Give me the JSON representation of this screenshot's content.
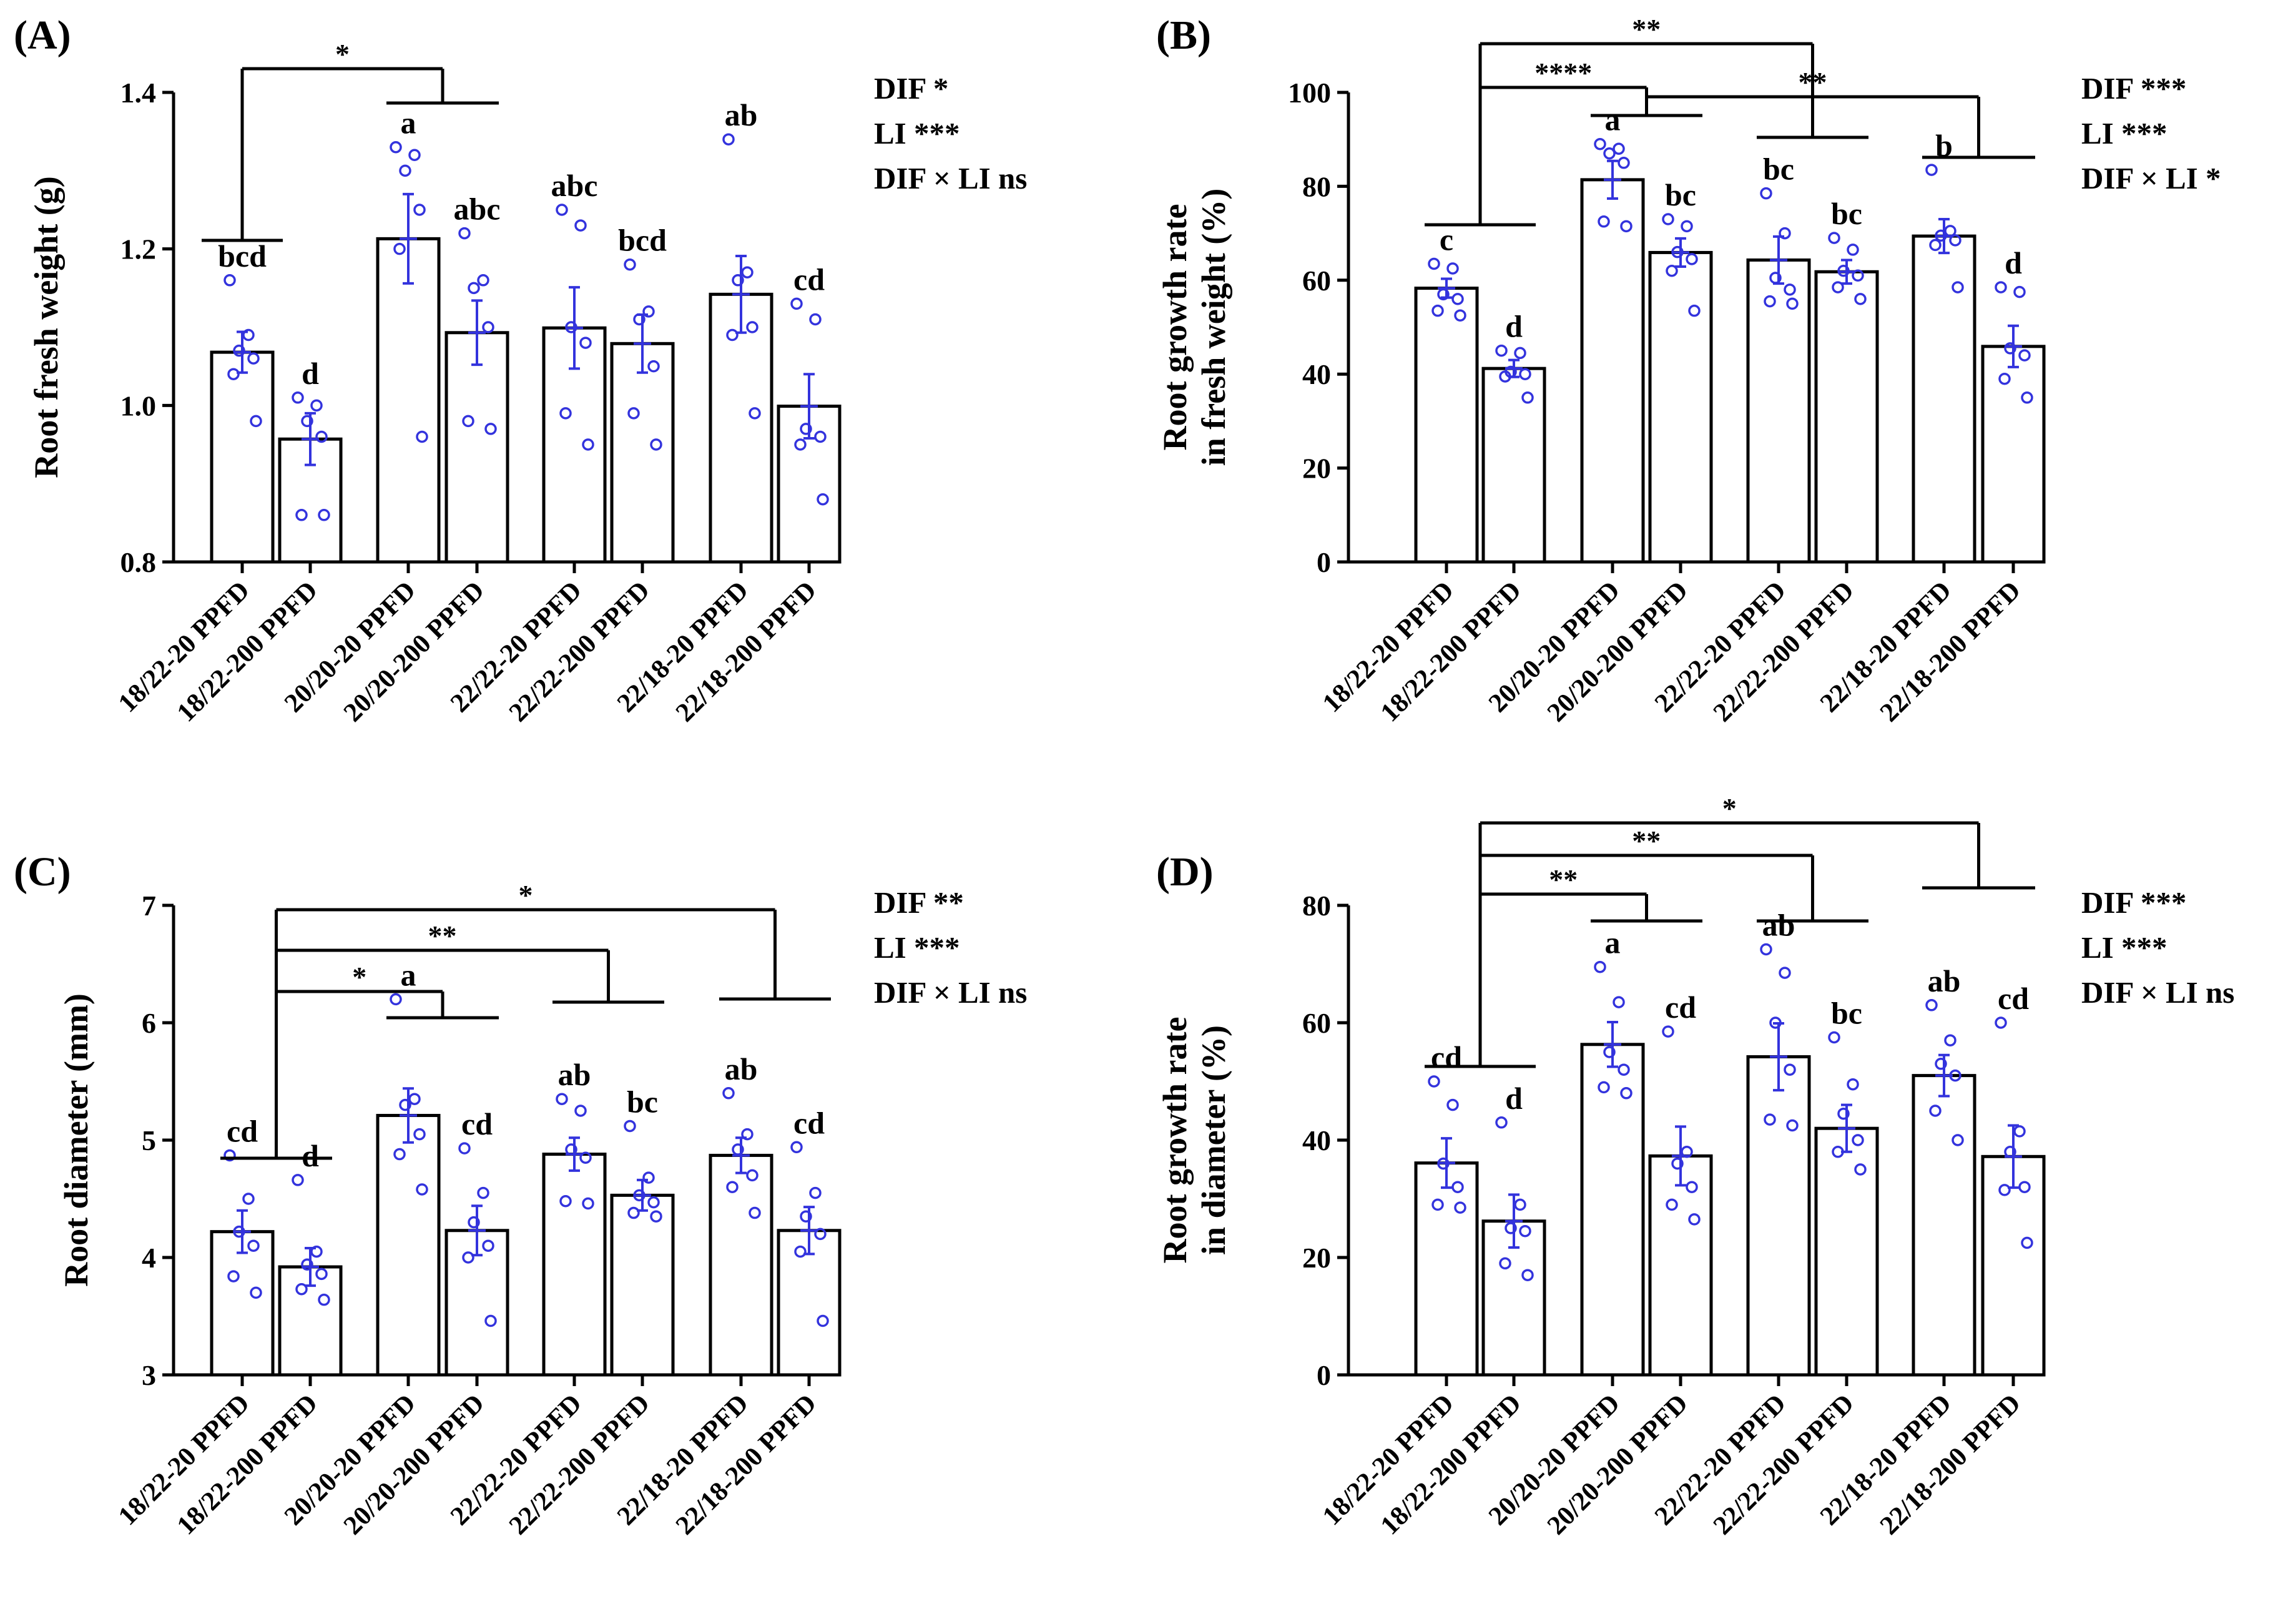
{
  "colors": {
    "points": "#3333dd",
    "bars": "#000000",
    "background": "#ffffff"
  },
  "chart_data": [
    {
      "type": "bar",
      "panel": "(A)",
      "title": "",
      "xlabel": "",
      "ylabel": [
        "Root fresh weight (g)"
      ],
      "ylim": [
        0.8,
        1.4
      ],
      "yticks": [
        "0.8",
        "1.0",
        "1.2",
        "1.4"
      ],
      "categories": [
        "18/22-20 PPFD",
        "18/22-200 PPFD",
        "20/20-20 PPFD",
        "20/20-200 PPFD",
        "22/22-20 PPFD",
        "22/22-200 PPFD",
        "22/18-20 PPFD",
        "22/18-200 PPFD"
      ],
      "values": [
        1.068,
        0.957,
        1.213,
        1.093,
        1.099,
        1.079,
        1.142,
        0.999
      ],
      "errors": [
        0.026,
        0.033,
        0.057,
        0.041,
        0.052,
        0.037,
        0.049,
        0.041
      ],
      "points": [
        [
          1.16,
          1.09,
          1.07,
          1.06,
          1.04,
          0.98
        ],
        [
          1.01,
          1.0,
          0.98,
          0.96,
          0.86,
          0.86
        ],
        [
          1.33,
          1.32,
          1.3,
          1.25,
          1.2,
          0.96
        ],
        [
          1.22,
          1.16,
          1.15,
          1.1,
          0.98,
          0.97
        ],
        [
          1.25,
          1.23,
          1.1,
          1.08,
          0.99,
          0.95
        ],
        [
          1.18,
          1.12,
          1.11,
          1.05,
          0.99,
          0.95
        ],
        [
          1.34,
          1.17,
          1.16,
          1.1,
          1.09,
          0.99
        ],
        [
          1.13,
          1.11,
          0.97,
          0.96,
          0.95,
          0.88
        ]
      ],
      "letters": [
        "bcd",
        "d",
        "a",
        "abc",
        "abc",
        "bcd",
        "ab",
        "cd"
      ],
      "stats": [
        "DIF *",
        "LI    ***",
        "DIF × LI ns"
      ],
      "brackets": [
        {
          "from": "18/22",
          "to": "20/20",
          "label": "*"
        }
      ]
    },
    {
      "type": "bar",
      "panel": "(B)",
      "title": "",
      "xlabel": "",
      "ylabel": [
        "Root growth rate",
        "in fresh weight (%)"
      ],
      "ylim": [
        0,
        100
      ],
      "yticks": [
        "0",
        "20",
        "40",
        "60",
        "80",
        "100"
      ],
      "categories": [
        "18/22-20 PPFD",
        "18/22-200 PPFD",
        "20/20-20 PPFD",
        "20/20-200 PPFD",
        "22/22-20 PPFD",
        "22/22-200 PPFD",
        "22/18-20 PPFD",
        "22/18-200 PPFD"
      ],
      "values": [
        58.3,
        41.2,
        81.4,
        65.9,
        64.3,
        61.8,
        69.4,
        45.9
      ],
      "errors": [
        2.0,
        1.8,
        4.0,
        3.0,
        5.0,
        2.5,
        3.6,
        4.4
      ],
      "points": [
        [
          63.5,
          62.5,
          57.0,
          56.0,
          53.5,
          52.5
        ],
        [
          45.0,
          44.5,
          40.5,
          40.0,
          39.5,
          35.0
        ],
        [
          89.0,
          88.0,
          87.0,
          85.0,
          72.5,
          71.5
        ],
        [
          73.0,
          71.5,
          66.0,
          64.5,
          62.0,
          53.5
        ],
        [
          78.5,
          70.0,
          60.5,
          58.0,
          55.5,
          55.0
        ],
        [
          69.0,
          66.5,
          62.0,
          61.0,
          58.5,
          56.0
        ],
        [
          83.5,
          70.5,
          69.5,
          68.5,
          67.5,
          58.5
        ],
        [
          58.5,
          57.5,
          45.5,
          44.0,
          39.0,
          35.0
        ]
      ],
      "letters": [
        "c",
        "d",
        "a",
        "bc",
        "bc",
        "bc",
        "b",
        "d"
      ],
      "stats": [
        "DIF ***",
        "LI    ***",
        "DIF × LI *"
      ],
      "brackets": [
        {
          "from": "18/22",
          "to": "20/20",
          "label": "****"
        },
        {
          "from": "18/22",
          "to": "22/22",
          "label": "**"
        },
        {
          "from": "20/20",
          "to": "22/18",
          "label": "**"
        }
      ]
    },
    {
      "type": "bar",
      "panel": "(C)",
      "title": "",
      "xlabel": "",
      "ylabel": [
        "Root diameter (mm)"
      ],
      "ylim": [
        3,
        7
      ],
      "yticks": [
        "3",
        "4",
        "5",
        "6",
        "7"
      ],
      "categories": [
        "18/22-20 PPFD",
        "18/22-200 PPFD",
        "20/20-20 PPFD",
        "20/20-200 PPFD",
        "22/22-20 PPFD",
        "22/22-200 PPFD",
        "22/18-20 PPFD",
        "22/18-200 PPFD"
      ],
      "values": [
        4.22,
        3.92,
        5.21,
        4.23,
        4.88,
        4.53,
        4.87,
        4.23
      ],
      "errors": [
        0.18,
        0.16,
        0.23,
        0.21,
        0.14,
        0.13,
        0.15,
        0.2
      ],
      "points": [
        [
          4.87,
          4.5,
          4.22,
          4.1,
          3.84,
          3.7
        ],
        [
          4.66,
          4.05,
          3.94,
          3.86,
          3.73,
          3.64
        ],
        [
          6.2,
          5.35,
          5.3,
          5.05,
          4.88,
          4.58
        ],
        [
          4.93,
          4.55,
          4.3,
          4.1,
          4.0,
          3.46
        ],
        [
          5.35,
          5.25,
          4.92,
          4.85,
          4.48,
          4.46
        ],
        [
          5.12,
          4.68,
          4.53,
          4.47,
          4.38,
          4.35
        ],
        [
          5.4,
          5.05,
          4.92,
          4.7,
          4.6,
          4.38
        ],
        [
          4.94,
          4.55,
          4.35,
          4.2,
          4.05,
          3.46
        ]
      ],
      "letters": [
        "cd",
        "d",
        "a",
        "cd",
        "ab",
        "bc",
        "ab",
        "cd"
      ],
      "stats": [
        "DIF **",
        "LI    ***",
        "DIF × LI ns"
      ],
      "brackets": [
        {
          "from": "18/22",
          "to": "20/20",
          "label": "*"
        },
        {
          "from": "18/22",
          "to": "22/22",
          "label": "**"
        },
        {
          "from": "18/22",
          "to": "22/18",
          "label": "*"
        }
      ]
    },
    {
      "type": "bar",
      "panel": "(D)",
      "title": "",
      "xlabel": "",
      "ylabel": [
        "Root growth rate",
        "in diameter (%)"
      ],
      "ylim": [
        0,
        80
      ],
      "yticks": [
        "0",
        "20",
        "40",
        "60",
        "80"
      ],
      "categories": [
        "18/22-20 PPFD",
        "18/22-200 PPFD",
        "20/20-20 PPFD",
        "20/20-200 PPFD",
        "22/22-20 PPFD",
        "22/22-200 PPFD",
        "22/18-20 PPFD",
        "22/18-200 PPFD"
      ],
      "values": [
        36.1,
        26.2,
        56.3,
        37.3,
        54.2,
        42.0,
        51.0,
        37.2
      ],
      "errors": [
        4.2,
        4.5,
        3.8,
        5.0,
        5.7,
        4.0,
        3.5,
        5.3
      ],
      "points": [
        [
          50.0,
          46.0,
          36.0,
          32.0,
          29.0,
          28.5
        ],
        [
          43.0,
          29.0,
          25.0,
          24.5,
          19.0,
          17.0
        ],
        [
          69.5,
          63.5,
          55.0,
          52.0,
          49.0,
          48.0
        ],
        [
          58.5,
          38.0,
          36.0,
          32.0,
          29.0,
          26.5
        ],
        [
          72.5,
          68.5,
          60.0,
          52.0,
          43.5,
          42.5
        ],
        [
          57.5,
          49.5,
          44.5,
          40.0,
          38.0,
          35.0
        ],
        [
          63.0,
          57.0,
          53.0,
          51.0,
          45.0,
          40.0
        ],
        [
          60.0,
          41.5,
          38.0,
          32.0,
          31.5,
          22.5
        ]
      ],
      "letters": [
        "cd",
        "d",
        "a",
        "cd",
        "ab",
        "bc",
        "ab",
        "cd"
      ],
      "stats": [
        "DIF ***",
        "LI    ***",
        "DIF × LI ns"
      ],
      "brackets": [
        {
          "from": "18/22",
          "to": "20/20",
          "label": "**"
        },
        {
          "from": "18/22",
          "to": "22/22",
          "label": "**"
        },
        {
          "from": "18/22",
          "to": "22/18",
          "label": "*"
        }
      ]
    }
  ]
}
